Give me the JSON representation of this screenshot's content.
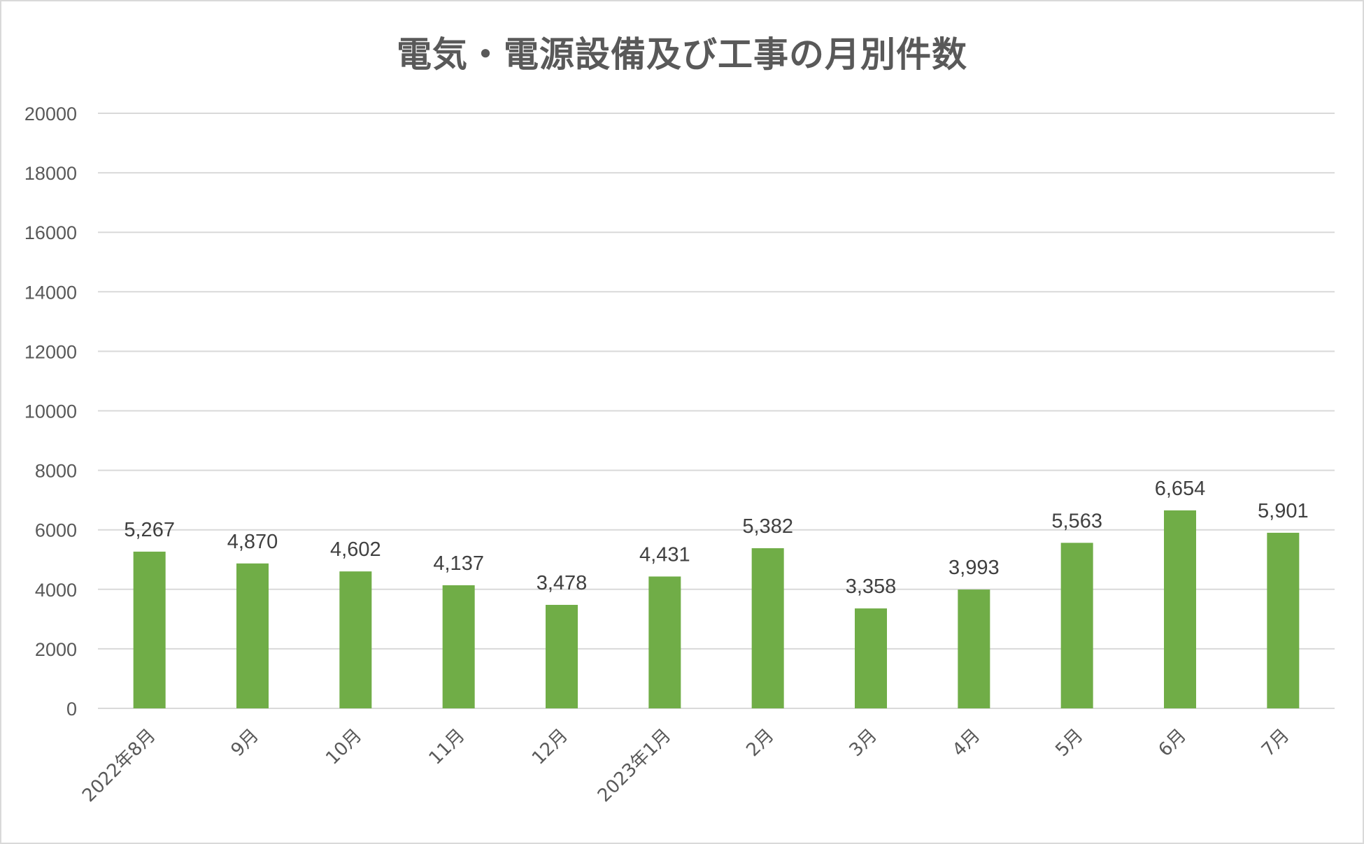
{
  "chart_data": {
    "type": "bar",
    "title": "電気・電源設備及び工事の月別件数",
    "categories": [
      "2022年8月",
      "9月",
      "10月",
      "11月",
      "12月",
      "2023年1月",
      "2月",
      "3月",
      "4月",
      "5月",
      "6月",
      "7月"
    ],
    "values": [
      5267,
      4870,
      4602,
      4137,
      3478,
      4431,
      5382,
      3358,
      3993,
      5563,
      6654,
      5901
    ],
    "value_labels": [
      "5,267",
      "4,870",
      "4,602",
      "4,137",
      "3,478",
      "4,431",
      "5,382",
      "3,358",
      "3,993",
      "5,563",
      "6,654",
      "5,901"
    ],
    "yticks": [
      "0",
      "2000",
      "4000",
      "6000",
      "8000",
      "10000",
      "12000",
      "14000",
      "16000",
      "18000",
      "20000"
    ],
    "ylim": [
      0,
      20000
    ],
    "xlabel": "",
    "ylabel": "",
    "grid": true,
    "legend": "none",
    "bar_color": "#70ad47"
  }
}
